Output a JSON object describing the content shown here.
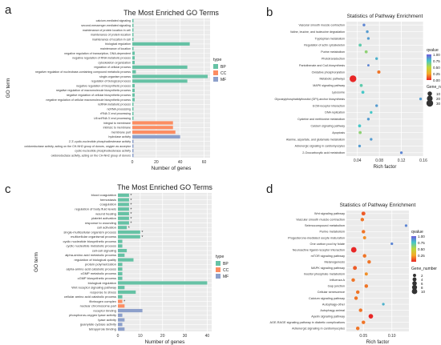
{
  "panels": {
    "a": {
      "letter": "a"
    },
    "b": {
      "letter": "b"
    },
    "c": {
      "letter": "c"
    },
    "d": {
      "letter": "d"
    }
  },
  "chart_data": [
    {
      "id": "a",
      "type": "bar",
      "orientation": "horizontal",
      "title": "The Most Enriched GO Terms",
      "xlabel": "Number of genes",
      "ylabel": "GO term",
      "xlim": [
        0,
        65
      ],
      "xticks": [
        0,
        20,
        40,
        60
      ],
      "grid": true,
      "legend": {
        "title": "type",
        "entries": [
          "BP",
          "CC",
          "MF"
        ],
        "position": "right"
      },
      "colors": {
        "BP": "#66c2a5",
        "CC": "#fc8d62",
        "MF": "#8da0cb"
      },
      "bars": [
        {
          "label": "calcium-mediated signaling",
          "value": 1,
          "type": "BP"
        },
        {
          "label": "second-messenger-mediated signaling",
          "value": 1,
          "type": "BP"
        },
        {
          "label": "maintenance of protein location in cell",
          "value": 1,
          "type": "BP"
        },
        {
          "label": "maintenance of protein location",
          "value": 1,
          "type": "BP"
        },
        {
          "label": "maintenance of location in cell",
          "value": 1,
          "type": "BP"
        },
        {
          "label": "biological regulation",
          "value": 48,
          "type": "BP"
        },
        {
          "label": "maintenance of location",
          "value": 1,
          "type": "BP"
        },
        {
          "label": "negative regulation of transcription, DNA-dependent",
          "value": 2,
          "type": "BP"
        },
        {
          "label": "negative regulation of RNA metabolic process",
          "value": 2,
          "type": "BP"
        },
        {
          "label": "cytoskeleton organization",
          "value": 2,
          "type": "BP"
        },
        {
          "label": "regulation of cellular process",
          "value": 46,
          "type": "BP"
        },
        {
          "label": "negative regulation of nucleobase-containing compound metabolic process",
          "value": 3,
          "type": "BP"
        },
        {
          "label": "single-organism process",
          "value": 63,
          "type": "BP"
        },
        {
          "label": "regulation of biological process",
          "value": 46,
          "type": "BP"
        },
        {
          "label": "negative regulation of biosynthetic process",
          "value": 2,
          "type": "BP"
        },
        {
          "label": "negative regulation of macromolecule biosynthetic process",
          "value": 2,
          "type": "BP"
        },
        {
          "label": "negative regulation of cellular biosynthetic process",
          "value": 2,
          "type": "BP"
        },
        {
          "label": "negative regulation of cellular macromolecule biosynthetic process",
          "value": 2,
          "type": "BP"
        },
        {
          "label": "ncRNA metabolic process",
          "value": 1,
          "type": "BP"
        },
        {
          "label": "ncRNA processing",
          "value": 1,
          "type": "BP"
        },
        {
          "label": "rRNA 3'-end processing",
          "value": 1,
          "type": "BP"
        },
        {
          "label": "U6 snRNA 3'-end processing",
          "value": 1,
          "type": "BP"
        },
        {
          "label": "integral to membrane",
          "value": 34,
          "type": "CC"
        },
        {
          "label": "intrinsic to membrane",
          "value": 34,
          "type": "CC"
        },
        {
          "label": "membrane part",
          "value": 36,
          "type": "CC"
        },
        {
          "label": "hydrolase activity",
          "value": 40,
          "type": "MF"
        },
        {
          "label": "2',3'-cyclic-nucleotide phosphodiesterase activity",
          "value": 1,
          "type": "MF"
        },
        {
          "label": "oxidoreductase activity, acting on the CH-NH2 group of donors, oxygen as acceptor",
          "value": 1,
          "type": "MF"
        },
        {
          "label": "cyclic-nucleotide phosphodiesterase activity",
          "value": 1,
          "type": "MF"
        },
        {
          "label": "oxidoreductase activity, acting on the CH-NH2 group of donors",
          "value": 1,
          "type": "MF"
        }
      ]
    },
    {
      "id": "b",
      "type": "scatter",
      "title": "Statistics of Pathway Enrichment",
      "xlabel": "Rich factor",
      "xlim": [
        0.02,
        0.16
      ],
      "xticks": [
        0.04,
        0.08,
        0.12,
        0.16
      ],
      "grid": true,
      "color_legend": {
        "title": "qvalue",
        "ticks": [
          1.0,
          0.75,
          0.5,
          0.25,
          0.0
        ],
        "labels": [
          "1.00",
          "0.75",
          "0.50",
          "0.25",
          "0.00"
        ]
      },
      "size_legend": {
        "title": "Gene_number",
        "ticks": [
          10,
          20,
          30
        ]
      },
      "points": [
        {
          "pathway": "Vascular smooth muscle contraction",
          "x": 0.052,
          "genes": 2,
          "q": 0.9
        },
        {
          "pathway": "Valine, leucine, and isoleucine degradation",
          "x": 0.058,
          "genes": 2,
          "q": 0.85
        },
        {
          "pathway": "Tryptophan metabolism",
          "x": 0.06,
          "genes": 2,
          "q": 0.85
        },
        {
          "pathway": "Regulation of actin cytoskeleton",
          "x": 0.045,
          "genes": 3,
          "q": 0.7
        },
        {
          "pathway": "Purine metabolism",
          "x": 0.056,
          "genes": 3,
          "q": 0.6
        },
        {
          "pathway": "Phototransduction",
          "x": 0.075,
          "genes": 2,
          "q": 0.8
        },
        {
          "pathway": "Pantothenate and CoA biosynthesis",
          "x": 0.06,
          "genes": 1,
          "q": 0.9
        },
        {
          "pathway": "Oxidative phosphorylation",
          "x": 0.079,
          "genes": 4,
          "q": 0.15
        },
        {
          "pathway": "Metabolic pathways",
          "x": 0.032,
          "genes": 30,
          "q": 0.0
        },
        {
          "pathway": "MAPK signaling pathway",
          "x": 0.047,
          "genes": 3,
          "q": 0.7
        },
        {
          "pathway": "Lysosome",
          "x": 0.05,
          "genes": 3,
          "q": 0.75
        },
        {
          "pathway": "Glycosylphosphatidylinositol (GPI)-anchor biosynthesis",
          "x": 0.155,
          "genes": 2,
          "q": 0.85
        },
        {
          "pathway": "ECM-receptor interaction",
          "x": 0.075,
          "genes": 2,
          "q": 0.85
        },
        {
          "pathway": "DNA replication",
          "x": 0.065,
          "genes": 2,
          "q": 0.75
        },
        {
          "pathway": "Cysteine and methionine metabolism",
          "x": 0.06,
          "genes": 2,
          "q": 0.85
        },
        {
          "pathway": "Calcium signaling pathway",
          "x": 0.044,
          "genes": 3,
          "q": 0.75
        },
        {
          "pathway": "Apoptosis",
          "x": 0.045,
          "genes": 3,
          "q": 0.6
        },
        {
          "pathway": "Alanine, aspartate, and glutamate metabolism",
          "x": 0.065,
          "genes": 2,
          "q": 0.85
        },
        {
          "pathway": "Adrenergic signaling in cardiomyocytes",
          "x": 0.044,
          "genes": 2,
          "q": 0.85
        },
        {
          "pathway": "2-Oxocarboxylic acid metabolism",
          "x": 0.12,
          "genes": 2,
          "q": 0.9
        }
      ]
    },
    {
      "id": "c",
      "type": "bar",
      "orientation": "horizontal",
      "title": "The Most Enriched GO Terms",
      "xlabel": "Number of genes",
      "ylabel": "GO term",
      "xlim": [
        0,
        42
      ],
      "xticks": [
        0,
        10,
        20,
        30,
        40
      ],
      "grid": true,
      "legend": {
        "title": "type",
        "entries": [
          "BP",
          "CC",
          "MF"
        ],
        "position": "right"
      },
      "colors": {
        "BP": "#66c2a5",
        "CC": "#fc8d62",
        "MF": "#8da0cb"
      },
      "star_marker": "*",
      "bars": [
        {
          "label": "blood coagulation",
          "value": 5,
          "type": "BP",
          "star": true
        },
        {
          "label": "hemostasis",
          "value": 5,
          "type": "BP",
          "star": true
        },
        {
          "label": "coagulation",
          "value": 5,
          "type": "BP",
          "star": true
        },
        {
          "label": "regulation of body fluid levels",
          "value": 5,
          "type": "BP",
          "star": true
        },
        {
          "label": "wound healing",
          "value": 5,
          "type": "BP",
          "star": true
        },
        {
          "label": "platelet activation",
          "value": 5,
          "type": "BP",
          "star": true
        },
        {
          "label": "response to wounding",
          "value": 5,
          "type": "BP",
          "star": true
        },
        {
          "label": "cell activation",
          "value": 4,
          "type": "BP",
          "star": true
        },
        {
          "label": "single-multicellular organism process",
          "value": 10,
          "type": "BP",
          "star": true
        },
        {
          "label": "multicellular organismal process",
          "value": 10,
          "type": "BP",
          "star": true
        },
        {
          "label": "cyclic nucleotide biosynthetic process",
          "value": 2,
          "type": "BP",
          "star": false
        },
        {
          "label": "cyclic nucleotide metabolic process",
          "value": 2,
          "type": "BP",
          "star": false
        },
        {
          "label": "cell-cell signaling",
          "value": 4,
          "type": "BP",
          "star": false
        },
        {
          "label": "alpha-amino acid metabolic process",
          "value": 3,
          "type": "BP",
          "star": false
        },
        {
          "label": "regulation of biological quality",
          "value": 7,
          "type": "BP",
          "star": false
        },
        {
          "label": "protein polymerization",
          "value": 2,
          "type": "BP",
          "star": false
        },
        {
          "label": "alpha-amino acid catabolic process",
          "value": 2,
          "type": "BP",
          "star": false
        },
        {
          "label": "cGMP metabolic process",
          "value": 2,
          "type": "BP",
          "star": false
        },
        {
          "label": "cGMP biosynthetic process",
          "value": 2,
          "type": "BP",
          "star": false
        },
        {
          "label": "biological regulation",
          "value": 40,
          "type": "BP",
          "star": false
        },
        {
          "label": "Wnt receptor signaling pathway",
          "value": 3,
          "type": "BP",
          "star": false
        },
        {
          "label": "response to stress",
          "value": 8,
          "type": "BP",
          "star": false
        },
        {
          "label": "cellular amino acid catabolic process",
          "value": 2,
          "type": "BP",
          "star": false
        },
        {
          "label": "fibrinogen complex",
          "value": 2,
          "type": "CC",
          "star": true
        },
        {
          "label": "nuclear chromosome part",
          "value": 3,
          "type": "CC",
          "star": false
        },
        {
          "label": "receptor binding",
          "value": 11,
          "type": "MF",
          "star": false
        },
        {
          "label": "phosphorus-oxygen lyase activity",
          "value": 2,
          "type": "MF",
          "star": false
        },
        {
          "label": "lyase activity",
          "value": 3,
          "type": "MF",
          "star": false
        },
        {
          "label": "guanylate cyclase activity",
          "value": 2,
          "type": "MF",
          "star": false
        },
        {
          "label": "tetrapyrrole binding",
          "value": 3,
          "type": "MF",
          "star": false
        }
      ]
    },
    {
      "id": "d",
      "type": "scatter",
      "title": "Statistics of Pathway Enrichment",
      "xlabel": "Rich factor",
      "xlim": [
        0.02,
        0.13
      ],
      "xticks": [
        0.05,
        0.1
      ],
      "xticklabels": [
        "0.05",
        "0.10"
      ],
      "grid": true,
      "color_legend": {
        "title": "qvalue",
        "ticks": [
          1.0,
          0.75,
          0.5,
          0.25
        ],
        "labels": [
          "1.00",
          "0.75",
          "0.50",
          "0.25"
        ]
      },
      "size_legend": {
        "title": "Gene_number",
        "ticks": [
          2,
          4,
          6,
          8,
          10
        ]
      },
      "points": [
        {
          "pathway": "Wnt signaling pathway",
          "x": 0.05,
          "genes": 4,
          "q": 0.1
        },
        {
          "pathway": "Vascular smooth muscle contraction",
          "x": 0.048,
          "genes": 3,
          "q": 0.15
        },
        {
          "pathway": "Selenocompound metabolism",
          "x": 0.125,
          "genes": 1,
          "q": 0.9
        },
        {
          "pathway": "Purine metabolism",
          "x": 0.05,
          "genes": 3,
          "q": 0.15
        },
        {
          "pathway": "Progesterone-mediated oocyte maturation",
          "x": 0.052,
          "genes": 2,
          "q": 0.2
        },
        {
          "pathway": "One carbon pool by folate",
          "x": 0.1,
          "genes": 1,
          "q": 0.9
        },
        {
          "pathway": "Neuroactive ligand-receptor interaction",
          "x": 0.033,
          "genes": 10,
          "q": 0.0
        },
        {
          "pathway": "mTOR signaling pathway",
          "x": 0.052,
          "genes": 3,
          "q": 0.15
        },
        {
          "pathway": "Melanogenesis",
          "x": 0.06,
          "genes": 3,
          "q": 0.15
        },
        {
          "pathway": "MAPK signaling pathway",
          "x": 0.035,
          "genes": 4,
          "q": 0.1
        },
        {
          "pathway": "Inositol phosphate metabolism",
          "x": 0.055,
          "genes": 2,
          "q": 0.2
        },
        {
          "pathway": "Influenza A",
          "x": 0.032,
          "genes": 3,
          "q": 0.15
        },
        {
          "pathway": "Gap junction",
          "x": 0.055,
          "genes": 3,
          "q": 0.15
        },
        {
          "pathway": "Cellular senescence",
          "x": 0.04,
          "genes": 3,
          "q": 0.15
        },
        {
          "pathway": "Calcium signaling pathway",
          "x": 0.037,
          "genes": 3,
          "q": 0.15
        },
        {
          "pathway": "Autophagy-other",
          "x": 0.085,
          "genes": 1,
          "q": 0.8
        },
        {
          "pathway": "Autophagy-animal",
          "x": 0.045,
          "genes": 3,
          "q": 0.15
        },
        {
          "pathway": "Apelin signaling pathway",
          "x": 0.063,
          "genes": 6,
          "q": 0.0
        },
        {
          "pathway": "AGE-RAGE signaling pathway in diabetic complications",
          "x": 0.05,
          "genes": 3,
          "q": 0.15
        },
        {
          "pathway": "Adrenergic signaling in cardiomyocytes",
          "x": 0.04,
          "genes": 3,
          "q": 0.15
        }
      ]
    }
  ]
}
